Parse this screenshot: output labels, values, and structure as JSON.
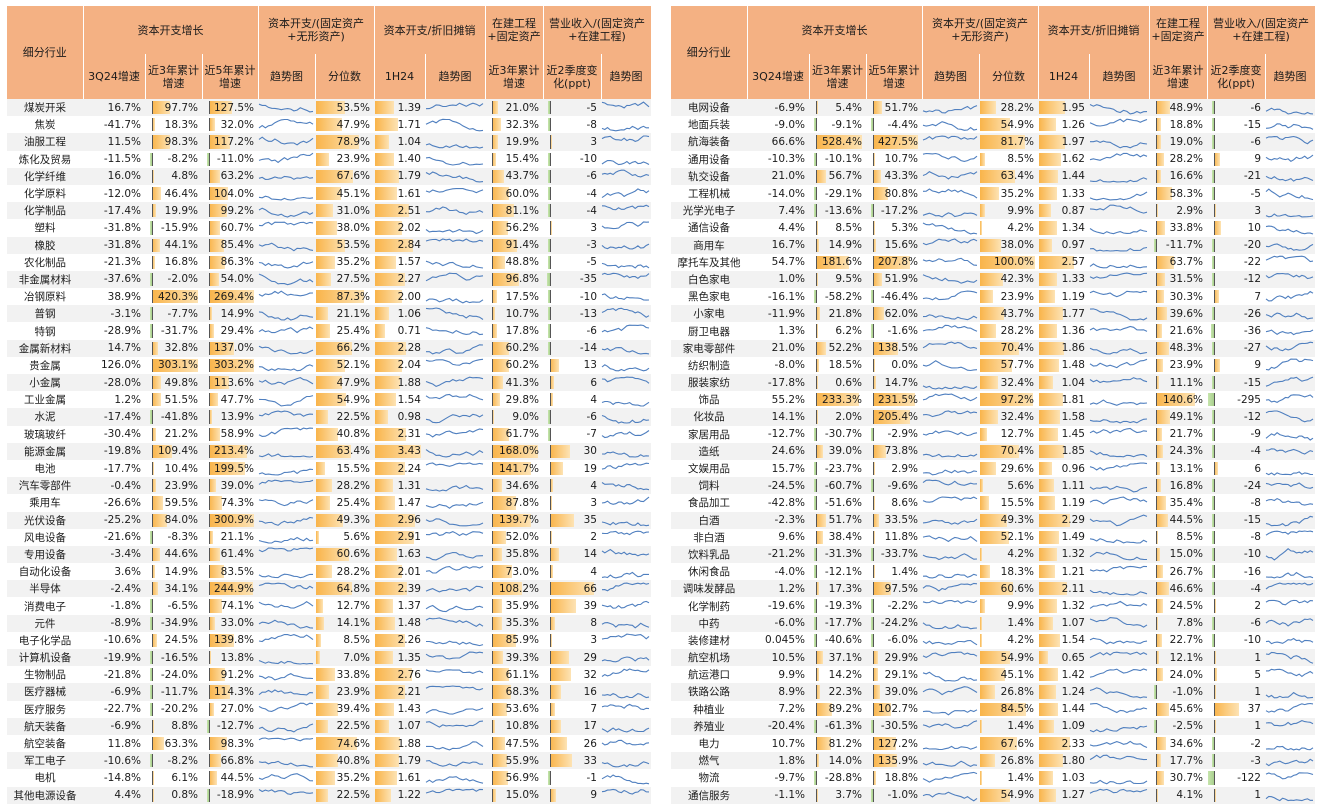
{
  "header": {
    "industry": "细分行业",
    "capex_growth": "资本开支增长",
    "q3_growth": "3Q24增速",
    "cum3y": "近3年累计增速",
    "cum5y": "近5年累计增速",
    "capex_ratio": "资本开支/(固定资产+无形资产)",
    "trend": "趋势图",
    "quantile": "分位数",
    "capex_da": "资本开支/折旧摊销",
    "h1": "1H24",
    "cip": "在建工程+固定资产",
    "cip_cum3y": "近3年累计增速",
    "rev_ratio": "营业收入/(固定资产+在建工程)",
    "q2chg": "近2季度变化(ppt)"
  },
  "colors": {
    "header_bg": "#f4b183",
    "bar_pos": "#f9b44a",
    "bar_neg": "#a9d08e",
    "spark": "#4f7fbf"
  },
  "left_rows": [
    [
      "煤炭开采",
      "16.7%",
      "97.7%",
      "127.5%",
      "53.5%",
      "1.39",
      "21.0%",
      "-5"
    ],
    [
      "焦炭",
      "-41.7%",
      "18.3%",
      "32.0%",
      "47.9%",
      "1.71",
      "32.3%",
      "-8"
    ],
    [
      "油服工程",
      "11.5%",
      "98.3%",
      "117.2%",
      "78.9%",
      "1.04",
      "19.9%",
      "3"
    ],
    [
      "炼化及贸易",
      "-11.5%",
      "-8.2%",
      "-11.0%",
      "23.9%",
      "1.40",
      "15.4%",
      "-10"
    ],
    [
      "化学纤维",
      "16.0%",
      "4.8%",
      "63.2%",
      "67.6%",
      "1.79",
      "43.7%",
      "-6"
    ],
    [
      "化学原料",
      "-12.0%",
      "46.4%",
      "104.0%",
      "45.1%",
      "1.61",
      "60.0%",
      "-4"
    ],
    [
      "化学制品",
      "-17.4%",
      "19.9%",
      "99.2%",
      "31.0%",
      "2.51",
      "81.1%",
      "-4"
    ],
    [
      "塑料",
      "-31.8%",
      "-15.9%",
      "60.7%",
      "38.0%",
      "2.02",
      "56.2%",
      "3"
    ],
    [
      "橡胶",
      "-31.8%",
      "44.1%",
      "85.4%",
      "53.5%",
      "2.84",
      "91.4%",
      "-3"
    ],
    [
      "农化制品",
      "-21.3%",
      "16.8%",
      "86.3%",
      "35.2%",
      "1.57",
      "48.8%",
      "-5"
    ],
    [
      "非金属材料",
      "-37.6%",
      "-2.0%",
      "54.0%",
      "27.5%",
      "2.27",
      "96.8%",
      "-35"
    ],
    [
      "冶钢原料",
      "38.9%",
      "420.3%",
      "269.4%",
      "87.3%",
      "2.00",
      "17.5%",
      "-10"
    ],
    [
      "普钢",
      "-3.1%",
      "-7.7%",
      "14.9%",
      "21.1%",
      "1.06",
      "10.7%",
      "-13"
    ],
    [
      "特钢",
      "-28.9%",
      "-31.7%",
      "29.4%",
      "25.4%",
      "0.71",
      "17.8%",
      "-6"
    ],
    [
      "金属新材料",
      "14.7%",
      "32.8%",
      "137.0%",
      "66.2%",
      "2.28",
      "60.2%",
      "-14"
    ],
    [
      "贵金属",
      "126.0%",
      "303.1%",
      "303.2%",
      "52.1%",
      "2.04",
      "60.2%",
      "13"
    ],
    [
      "小金属",
      "-28.0%",
      "49.8%",
      "113.6%",
      "47.9%",
      "1.88",
      "41.3%",
      "6"
    ],
    [
      "工业金属",
      "1.2%",
      "51.5%",
      "47.7%",
      "54.9%",
      "1.54",
      "29.8%",
      "4"
    ],
    [
      "水泥",
      "-17.4%",
      "-41.8%",
      "13.9%",
      "22.5%",
      "0.98",
      "9.0%",
      "-6"
    ],
    [
      "玻璃玻纤",
      "-30.4%",
      "21.2%",
      "58.9%",
      "40.8%",
      "2.31",
      "61.7%",
      "-7"
    ],
    [
      "能源金属",
      "-19.8%",
      "109.4%",
      "213.4%",
      "63.4%",
      "3.43",
      "168.0%",
      "30"
    ],
    [
      "电池",
      "-17.7%",
      "10.4%",
      "199.5%",
      "15.5%",
      "2.24",
      "141.7%",
      "19"
    ],
    [
      "汽车零部件",
      "-0.4%",
      "23.9%",
      "39.0%",
      "28.2%",
      "1.31",
      "34.6%",
      "4"
    ],
    [
      "乘用车",
      "-26.6%",
      "59.5%",
      "74.3%",
      "25.4%",
      "1.47",
      "87.8%",
      "3"
    ],
    [
      "光伏设备",
      "-25.2%",
      "84.0%",
      "300.9%",
      "49.3%",
      "2.96",
      "139.7%",
      "35"
    ],
    [
      "风电设备",
      "-21.6%",
      "-8.3%",
      "21.1%",
      "5.6%",
      "2.91",
      "52.0%",
      "2"
    ],
    [
      "专用设备",
      "-3.4%",
      "44.6%",
      "61.4%",
      "60.6%",
      "1.63",
      "35.8%",
      "14"
    ],
    [
      "自动化设备",
      "3.6%",
      "14.9%",
      "83.5%",
      "28.2%",
      "2.01",
      "73.0%",
      "4"
    ],
    [
      "半导体",
      "-2.4%",
      "34.1%",
      "244.9%",
      "64.8%",
      "2.39",
      "108.2%",
      "66"
    ],
    [
      "消费电子",
      "-1.8%",
      "-6.5%",
      "74.1%",
      "12.7%",
      "1.37",
      "35.9%",
      "39"
    ],
    [
      "元件",
      "-8.9%",
      "-34.9%",
      "33.0%",
      "14.1%",
      "1.48",
      "35.3%",
      "8"
    ],
    [
      "电子化学品",
      "-10.6%",
      "24.5%",
      "139.8%",
      "8.5%",
      "2.26",
      "85.9%",
      "3"
    ],
    [
      "计算机设备",
      "-19.9%",
      "-16.5%",
      "13.8%",
      "7.0%",
      "1.35",
      "39.3%",
      "29"
    ],
    [
      "生物制品",
      "-21.8%",
      "-24.0%",
      "91.2%",
      "33.8%",
      "2.76",
      "61.1%",
      "32"
    ],
    [
      "医疗器械",
      "-6.9%",
      "-11.7%",
      "114.3%",
      "23.9%",
      "2.21",
      "68.3%",
      "16"
    ],
    [
      "医疗服务",
      "-22.7%",
      "-20.2%",
      "27.0%",
      "39.4%",
      "1.43",
      "53.6%",
      "7"
    ],
    [
      "航天装备",
      "-6.9%",
      "8.8%",
      "-12.7%",
      "22.5%",
      "1.07",
      "10.8%",
      "17"
    ],
    [
      "航空装备",
      "11.8%",
      "63.3%",
      "98.3%",
      "74.6%",
      "1.88",
      "47.5%",
      "26"
    ],
    [
      "军工电子",
      "-10.6%",
      "-8.2%",
      "66.8%",
      "40.8%",
      "1.79",
      "55.9%",
      "33"
    ],
    [
      "电机",
      "-14.8%",
      "6.1%",
      "44.5%",
      "35.2%",
      "1.61",
      "56.9%",
      "-1"
    ],
    [
      "其他电源设备",
      "4.4%",
      "0.8%",
      "-18.9%",
      "22.5%",
      "1.22",
      "15.0%",
      "9"
    ]
  ],
  "right_rows": [
    [
      "电网设备",
      "-6.9%",
      "5.4%",
      "51.7%",
      "28.2%",
      "1.95",
      "48.9%",
      "-6"
    ],
    [
      "地面兵装",
      "-9.0%",
      "-9.1%",
      "-4.4%",
      "54.9%",
      "1.26",
      "18.8%",
      "-15"
    ],
    [
      "航海装备",
      "66.6%",
      "528.4%",
      "427.5%",
      "81.7%",
      "1.97",
      "19.0%",
      "-6"
    ],
    [
      "通用设备",
      "-10.3%",
      "-10.1%",
      "10.7%",
      "8.5%",
      "1.62",
      "28.2%",
      "9"
    ],
    [
      "轨交设备",
      "21.0%",
      "56.7%",
      "43.3%",
      "63.4%",
      "1.44",
      "16.6%",
      "-21"
    ],
    [
      "工程机械",
      "-14.0%",
      "-29.1%",
      "80.8%",
      "35.2%",
      "1.33",
      "58.3%",
      "-5"
    ],
    [
      "光学光电子",
      "7.4%",
      "-13.6%",
      "-17.2%",
      "9.9%",
      "0.87",
      "2.9%",
      "3"
    ],
    [
      "通信设备",
      "4.4%",
      "8.5%",
      "5.3%",
      "4.2%",
      "1.34",
      "33.8%",
      "10"
    ],
    [
      "商用车",
      "16.7%",
      "14.9%",
      "15.6%",
      "38.0%",
      "0.97",
      "-11.7%",
      "-20"
    ],
    [
      "摩托车及其他",
      "54.7%",
      "181.6%",
      "207.8%",
      "100.0%",
      "2.57",
      "63.7%",
      "-22"
    ],
    [
      "白色家电",
      "1.0%",
      "9.5%",
      "51.9%",
      "42.3%",
      "1.33",
      "31.5%",
      "-12"
    ],
    [
      "黑色家电",
      "-16.1%",
      "-58.2%",
      "-46.4%",
      "23.9%",
      "1.19",
      "30.3%",
      "7"
    ],
    [
      "小家电",
      "-11.9%",
      "21.8%",
      "62.0%",
      "43.7%",
      "1.77",
      "39.6%",
      "-26"
    ],
    [
      "厨卫电器",
      "1.3%",
      "6.2%",
      "-1.6%",
      "28.2%",
      "1.36",
      "21.6%",
      "-36"
    ],
    [
      "家电零部件",
      "21.0%",
      "52.2%",
      "138.5%",
      "70.4%",
      "1.86",
      "48.3%",
      "-27"
    ],
    [
      "纺织制造",
      "-8.0%",
      "18.5%",
      "0.0%",
      "57.7%",
      "1.48",
      "23.9%",
      "9"
    ],
    [
      "服装家纺",
      "-17.8%",
      "0.6%",
      "14.7%",
      "32.4%",
      "1.04",
      "11.1%",
      "-15"
    ],
    [
      "饰品",
      "55.2%",
      "233.3%",
      "231.5%",
      "97.2%",
      "1.81",
      "140.6%",
      "-295"
    ],
    [
      "化妆品",
      "14.1%",
      "2.0%",
      "205.4%",
      "32.4%",
      "1.58",
      "49.1%",
      "-12"
    ],
    [
      "家居用品",
      "-12.7%",
      "-30.7%",
      "-2.9%",
      "12.7%",
      "1.45",
      "21.7%",
      "-9"
    ],
    [
      "造纸",
      "24.6%",
      "39.0%",
      "73.8%",
      "70.4%",
      "1.85",
      "24.3%",
      "-4"
    ],
    [
      "文娱用品",
      "15.7%",
      "-23.7%",
      "2.9%",
      "29.6%",
      "0.96",
      "13.1%",
      "6"
    ],
    [
      "饲料",
      "-24.5%",
      "-60.7%",
      "-9.6%",
      "5.6%",
      "1.11",
      "16.8%",
      "-24"
    ],
    [
      "食品加工",
      "-42.8%",
      "-51.6%",
      "8.6%",
      "15.5%",
      "1.19",
      "35.4%",
      "-8"
    ],
    [
      "白酒",
      "-2.3%",
      "51.7%",
      "33.5%",
      "49.3%",
      "2.29",
      "44.5%",
      "-15"
    ],
    [
      "非白酒",
      "9.6%",
      "38.4%",
      "11.8%",
      "52.1%",
      "1.49",
      "8.5%",
      "-8"
    ],
    [
      "饮料乳品",
      "-21.2%",
      "-31.3%",
      "-33.7%",
      "4.2%",
      "1.32",
      "15.0%",
      "-10"
    ],
    [
      "休闲食品",
      "-4.0%",
      "-12.1%",
      "1.4%",
      "18.3%",
      "1.21",
      "26.7%",
      "-16"
    ],
    [
      "调味发酵品",
      "1.2%",
      "17.3%",
      "97.5%",
      "60.6%",
      "2.11",
      "46.6%",
      "-4"
    ],
    [
      "化学制药",
      "-19.6%",
      "-19.3%",
      "-2.2%",
      "9.9%",
      "1.32",
      "24.5%",
      "2"
    ],
    [
      "中药",
      "-6.0%",
      "-17.7%",
      "-24.2%",
      "1.4%",
      "1.07",
      "7.8%",
      "-6"
    ],
    [
      "装修建材",
      "0.045%",
      "-40.6%",
      "-6.0%",
      "4.2%",
      "1.54",
      "22.7%",
      "-10"
    ],
    [
      "航空机场",
      "10.5%",
      "37.1%",
      "29.9%",
      "54.9%",
      "0.65",
      "12.1%",
      "1"
    ],
    [
      "航运港口",
      "9.9%",
      "14.2%",
      "29.1%",
      "45.1%",
      "1.42",
      "24.0%",
      "5"
    ],
    [
      "铁路公路",
      "8.9%",
      "22.3%",
      "39.0%",
      "26.8%",
      "1.24",
      "-1.0%",
      "1"
    ],
    [
      "种植业",
      "7.2%",
      "89.2%",
      "102.7%",
      "84.5%",
      "1.44",
      "45.6%",
      "37"
    ],
    [
      "养殖业",
      "-20.4%",
      "-61.3%",
      "-30.5%",
      "1.4%",
      "1.09",
      "-2.5%",
      "1"
    ],
    [
      "电力",
      "10.7%",
      "81.2%",
      "127.2%",
      "67.6%",
      "2.33",
      "34.6%",
      "-2"
    ],
    [
      "燃气",
      "1.8%",
      "14.0%",
      "135.9%",
      "26.8%",
      "1.80",
      "17.7%",
      "-3"
    ],
    [
      "物流",
      "-9.7%",
      "-28.8%",
      "18.8%",
      "1.4%",
      "1.03",
      "30.7%",
      "-122"
    ],
    [
      "通信服务",
      "-1.1%",
      "3.7%",
      "-1.0%",
      "54.9%",
      "1.27",
      "4.1%",
      "1"
    ]
  ]
}
